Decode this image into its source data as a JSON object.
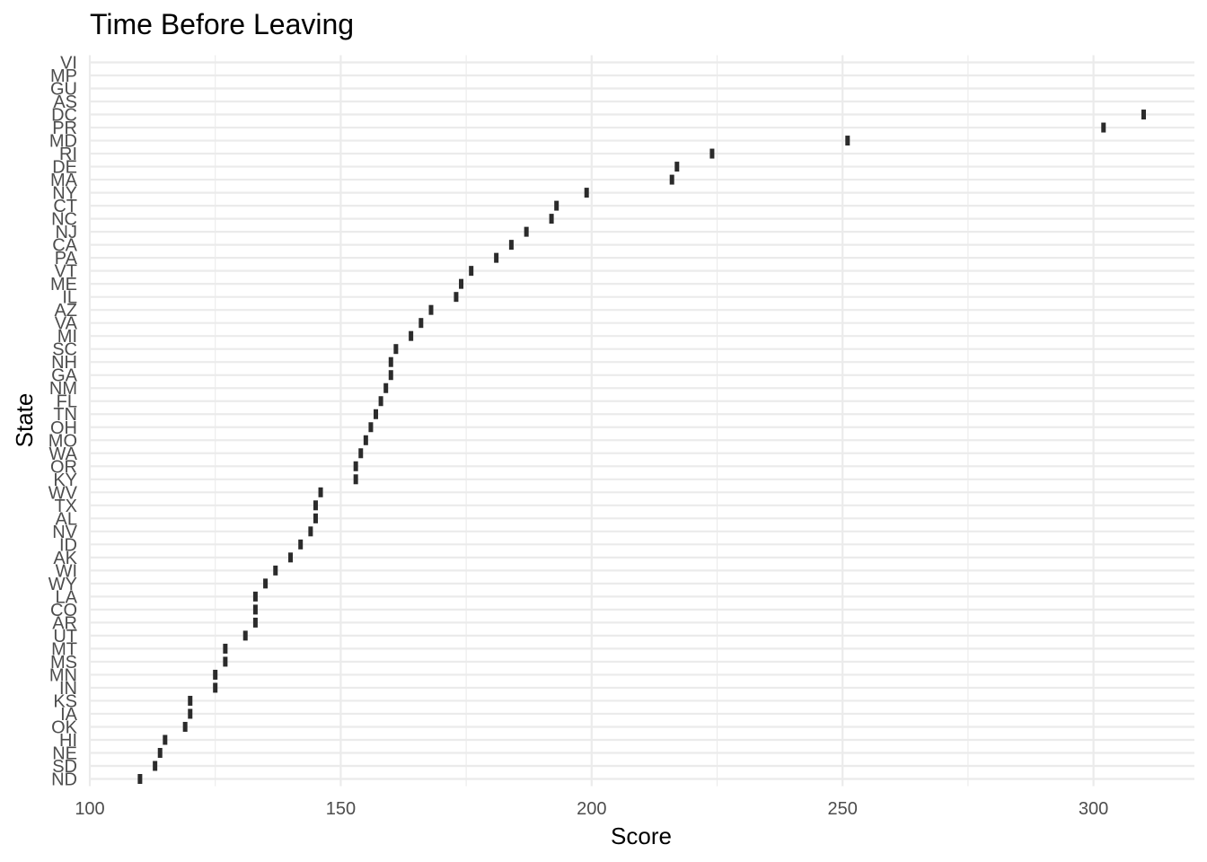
{
  "chart_data": {
    "type": "scatter",
    "title": "Time Before Leaving",
    "xlabel": "Score",
    "ylabel": "State",
    "xlim": [
      100,
      322
    ],
    "x_ticks": [
      100,
      150,
      200,
      250,
      300
    ],
    "x_minor_ticks": [
      125,
      175,
      225,
      275
    ],
    "grid": true,
    "legend": "none",
    "mark_color": "#2b2b2b",
    "grid_color": "#ebebeb",
    "categories": [
      "ND",
      "SD",
      "NE",
      "HI",
      "OK",
      "IA",
      "KS",
      "IN",
      "MN",
      "MS",
      "MT",
      "UT",
      "AR",
      "CO",
      "LA",
      "WY",
      "WI",
      "AK",
      "ID",
      "NV",
      "AL",
      "TX",
      "WV",
      "KY",
      "OR",
      "WA",
      "MO",
      "OH",
      "TN",
      "FL",
      "NM",
      "GA",
      "NH",
      "SC",
      "MI",
      "VA",
      "AZ",
      "IL",
      "ME",
      "VT",
      "PA",
      "CA",
      "NJ",
      "NC",
      "CT",
      "NY",
      "MA",
      "DE",
      "RI",
      "MD",
      "PR",
      "DC",
      "AS",
      "GU",
      "MP",
      "VI"
    ],
    "values": [
      110,
      113,
      114,
      115,
      119,
      120,
      120,
      125,
      125,
      127,
      127,
      131,
      133,
      133,
      133,
      135,
      137,
      140,
      142,
      144,
      145,
      145,
      146,
      153,
      153,
      154,
      155,
      156,
      157,
      158,
      159,
      160,
      160,
      161,
      164,
      166,
      168,
      173,
      174,
      176,
      181,
      184,
      187,
      192,
      193,
      199,
      216,
      217,
      224,
      251,
      302,
      310,
      null,
      null,
      null,
      null
    ]
  }
}
